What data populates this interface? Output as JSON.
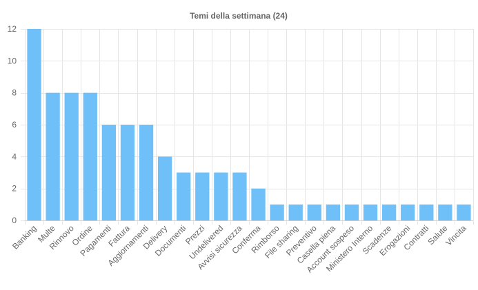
{
  "chart_data": {
    "type": "bar",
    "title": "Temi della settimana (24)",
    "xlabel": "",
    "ylabel": "",
    "ylim": [
      0,
      12
    ],
    "yticks": [
      0,
      2,
      4,
      6,
      8,
      10,
      12
    ],
    "grid": true,
    "legend": "none",
    "bar_color": "#6fc0f8",
    "categories": [
      "Banking",
      "Multe",
      "Rinnovo",
      "Ordine",
      "Pagamenti",
      "Fattura",
      "Aggiornamenti",
      "Delivery",
      "Documenti",
      "Prezzi",
      "Undelivered",
      "Avvisi sicurezza",
      "Conferma",
      "Rimborso",
      "File sharing",
      "Preventivo",
      "Casella piena",
      "Account sospeso",
      "Ministero Interno",
      "Scadenze",
      "Erogazioni",
      "Contratti",
      "Salute",
      "Vincita"
    ],
    "values": [
      12,
      8,
      8,
      8,
      6,
      6,
      6,
      4,
      3,
      3,
      3,
      3,
      2,
      1,
      1,
      1,
      1,
      1,
      1,
      1,
      1,
      1,
      1,
      1
    ]
  }
}
